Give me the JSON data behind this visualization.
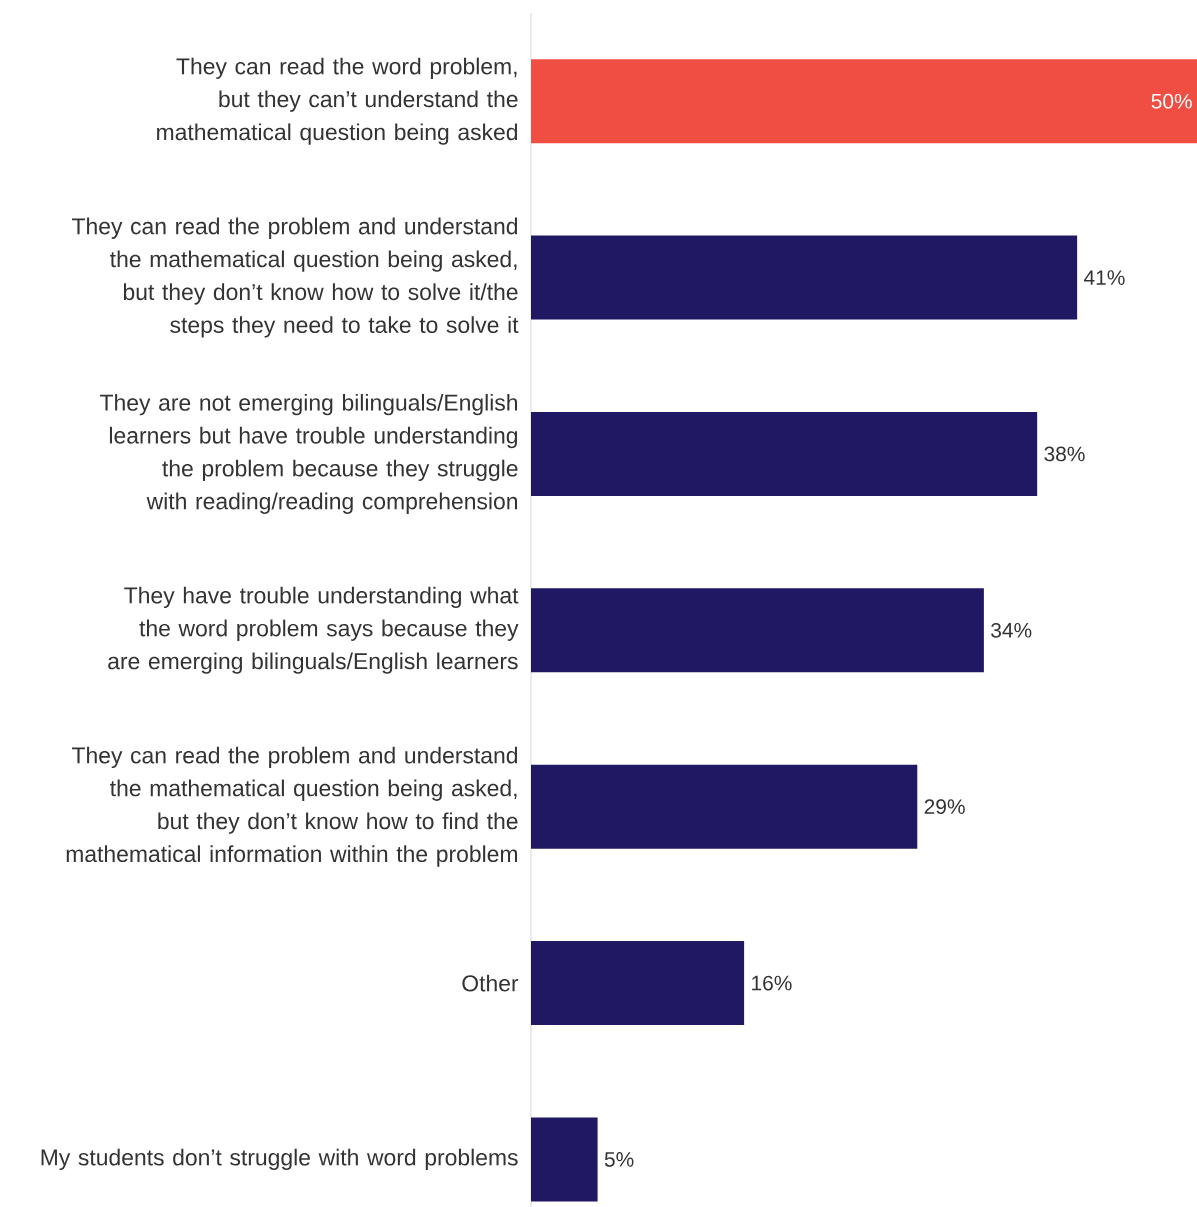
{
  "chart_data": {
    "type": "bar",
    "orientation": "horizontal",
    "categories": [
      "They can read the word problem, but they can’t understand the mathematical question being asked",
      "They can read the problem and understand the mathematical question being asked, but they don’t know how to solve it/the steps they need to take to solve it",
      "They are not emerging bilinguals/English learners but have trouble understanding the problem because they struggle with reading/reading comprehension",
      "They have trouble understanding what the word problem says because they are emerging bilinguals/English learners",
      "They can read the problem and understand the mathematical question being asked, but they don’t know how to find the mathematical information within the problem",
      "Other",
      "My students don’t struggle with word problems"
    ],
    "values": [
      50,
      41,
      38,
      34,
      29,
      16,
      5
    ],
    "value_labels": [
      "50%",
      "41%",
      "38%",
      "34%",
      "29%",
      "16%",
      "5%"
    ],
    "colors": [
      "#f04e42",
      "#211863",
      "#211863",
      "#211863",
      "#211863",
      "#211863",
      "#211863"
    ]
  }
}
